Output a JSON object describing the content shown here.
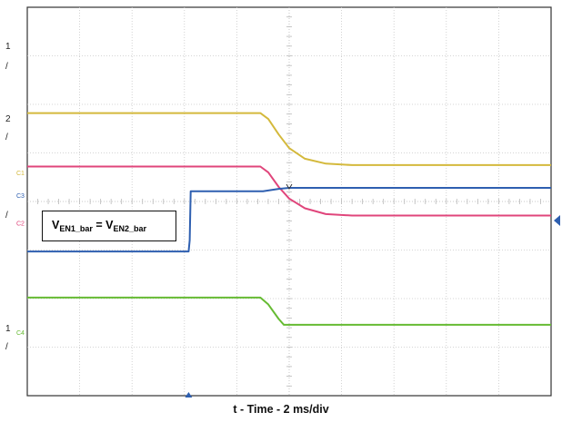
{
  "chart_data": {
    "type": "line",
    "title": "",
    "xlabel": "t - Time - 2 ms/div",
    "ylabel": "",
    "x_divisions": 10,
    "y_divisions": 8,
    "grid": true,
    "annotation": {
      "symbol": "V",
      "sub1": "EN1_bar",
      "equals": " = ",
      "sub2": "EN2_bar"
    },
    "series": [
      {
        "name": "C1",
        "color": "#d4b93c",
        "x_div": [
          0,
          4.45,
          4.6,
          4.8,
          5.0,
          5.3,
          5.7,
          6.2,
          10
        ],
        "y_div": [
          5.82,
          5.82,
          5.7,
          5.38,
          5.1,
          4.88,
          4.78,
          4.75,
          4.75
        ]
      },
      {
        "name": "C2",
        "color": "#e0457b",
        "x_div": [
          0,
          4.45,
          4.6,
          4.8,
          5.0,
          5.3,
          5.7,
          6.2,
          10
        ],
        "y_div": [
          4.72,
          4.72,
          4.6,
          4.3,
          4.06,
          3.86,
          3.74,
          3.71,
          3.71
        ]
      },
      {
        "name": "C3",
        "color": "#2e5fb0",
        "x_div": [
          0,
          3.08,
          3.1,
          3.12,
          4.5,
          4.8,
          5.0,
          10
        ],
        "y_div": [
          2.97,
          2.97,
          3.2,
          4.21,
          4.21,
          4.26,
          4.28,
          4.28
        ]
      },
      {
        "name": "C4",
        "color": "#66bb33",
        "x_div": [
          0,
          4.45,
          4.6,
          4.8,
          4.9,
          10
        ],
        "y_div": [
          2.02,
          2.02,
          1.88,
          1.58,
          1.46,
          1.46
        ]
      }
    ],
    "channel_labels": [
      "C1",
      "C2",
      "C3",
      "C4"
    ],
    "left_labels": [
      "1",
      "/",
      "2",
      "/",
      "/",
      "1",
      "/"
    ]
  }
}
